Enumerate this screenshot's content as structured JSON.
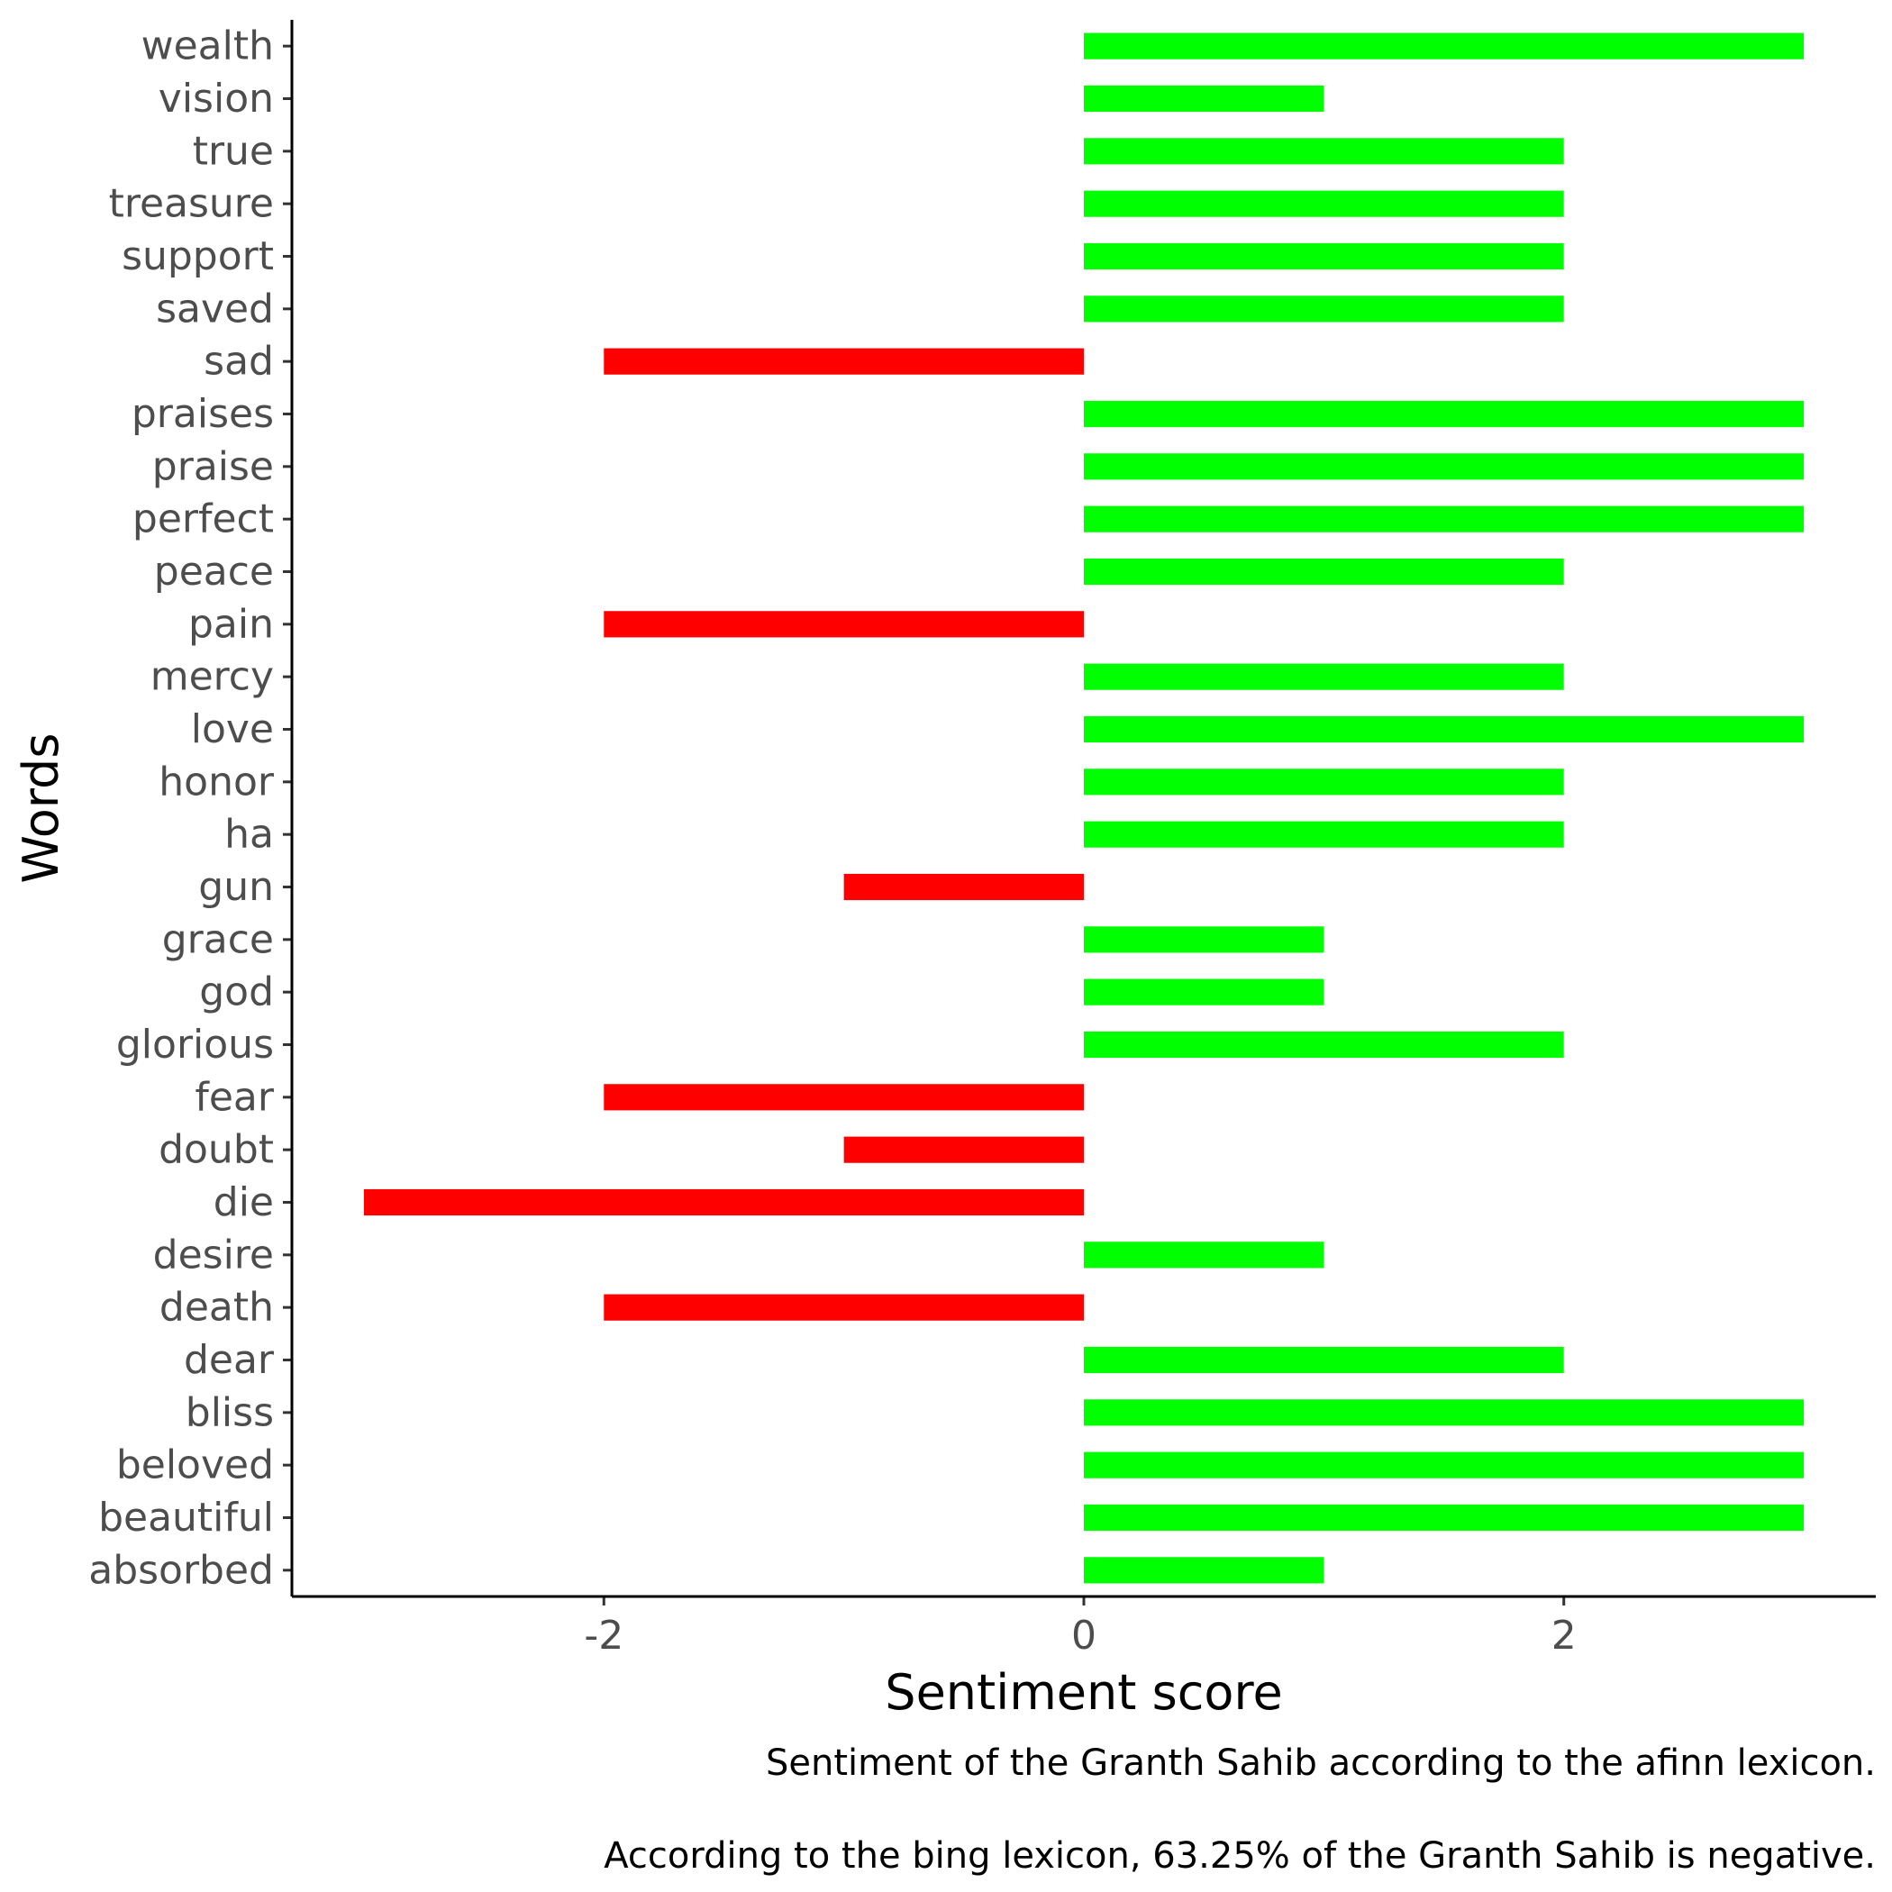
{
  "chart_data": {
    "type": "bar",
    "orientation": "horizontal",
    "categories": [
      "wealth",
      "vision",
      "true",
      "treasure",
      "support",
      "saved",
      "sad",
      "praises",
      "praise",
      "perfect",
      "peace",
      "pain",
      "mercy",
      "love",
      "honor",
      "ha",
      "gun",
      "grace",
      "god",
      "glorious",
      "fear",
      "doubt",
      "die",
      "desire",
      "death",
      "dear",
      "bliss",
      "beloved",
      "beautiful",
      "absorbed"
    ],
    "values": [
      3,
      1,
      2,
      2,
      2,
      2,
      -2,
      3,
      3,
      3,
      2,
      -2,
      2,
      3,
      2,
      2,
      -1,
      1,
      1,
      2,
      -2,
      -1,
      -3,
      1,
      -2,
      2,
      3,
      3,
      3,
      1
    ],
    "xlabel": "Sentiment score",
    "ylabel": "Words",
    "xlim": [
      -3.3,
      3.3
    ],
    "xticks": [
      -2,
      0,
      2
    ],
    "xtick_labels": [
      "-2",
      "0",
      "2"
    ],
    "grid": false,
    "legend": "none",
    "captions": [
      "Sentiment of the Granth Sahib according to the afinn lexicon.",
      "According to the bing lexicon, 63.25% of the Granth Sahib is negative."
    ],
    "colors": {
      "positive": "#00ff00",
      "negative": "#ff0000",
      "axis": "#000000",
      "tick_text": "#4d4d4d"
    }
  }
}
